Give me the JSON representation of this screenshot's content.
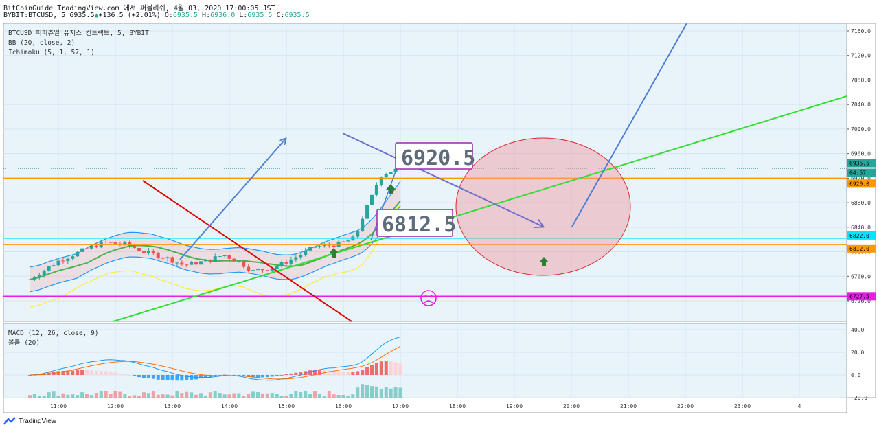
{
  "header": {
    "line1": "BitCoinGuide TradingView.com 에서 퍼블리쉬, 4월 03, 2020 17:00:05 JST",
    "symbol": "BYBIT:BTCUSD, 5",
    "last": "6935.5",
    "change": "+136.5 (+2.01%)",
    "o_label": "O:",
    "o": "6935.5",
    "h_label": "H:",
    "h": "6936.0",
    "l_label": "L:",
    "l": "6935.5",
    "c_label": "C:",
    "c": "6935.5"
  },
  "legend": {
    "title": "BTCUSD 퍼피츄얼 퓨처스 컨트랙트, 5, BYBIT",
    "bb": "BB (20, close, 2)",
    "ichimoku": "Ichimoku (5, 1, 57, 1)"
  },
  "macd_legend": {
    "macd": "MACD (12, 26, close, 9)",
    "volume": "볼륨 (20)"
  },
  "annotations": {
    "box_high": "6920.5",
    "box_low": "6812.5"
  },
  "price_labels": {
    "current": "6935.5",
    "countdown": "04:57",
    "orange_high": "6920.0",
    "cyan": "6822.0",
    "orange_low": "6812.0",
    "magenta": "6727.5"
  },
  "footer": {
    "brand": "TradingView"
  },
  "colors": {
    "up": "#26a69a",
    "down": "#ef5350",
    "bb": "#2196f3",
    "ichimoku_base": "#4caf50",
    "lagging": "#ffeb3b",
    "orange": "#ff9800",
    "cyan": "#00e5ff",
    "magenta": "#e91ee0",
    "trend_green": "#33dd33",
    "trend_red": "#e00000",
    "arrow_blue": "#4a7fd6",
    "box_purple": "#9c27b0"
  },
  "chart_data": [
    {
      "type": "candlestick",
      "title": "BTCUSD 퍼피츄얼 퓨처스 컨트랙트, 5, BYBIT",
      "x_ticks": [
        "11:00",
        "12:00",
        "13:00",
        "14:00",
        "15:00",
        "16:00",
        "17:00",
        "18:00",
        "19:00",
        "20:00",
        "21:00",
        "22:00",
        "23:00",
        "4"
      ],
      "y_ticks": [
        6720,
        6760,
        6800,
        6840,
        6880,
        6920,
        6960,
        7000,
        7040,
        7080,
        7120,
        7160
      ],
      "ylim": [
        6706,
        7170
      ],
      "horizontal_levels": [
        6920.0,
        6822.0,
        6812.0,
        6727.5
      ],
      "last_price": 6935.5,
      "annotated_prices": [
        6920.5,
        6812.5
      ]
    },
    {
      "type": "bar",
      "title": "MACD (12, 26, close, 9)",
      "y_ticks": [
        -20,
        0,
        20,
        40
      ],
      "ylim": [
        -20,
        42
      ]
    }
  ]
}
